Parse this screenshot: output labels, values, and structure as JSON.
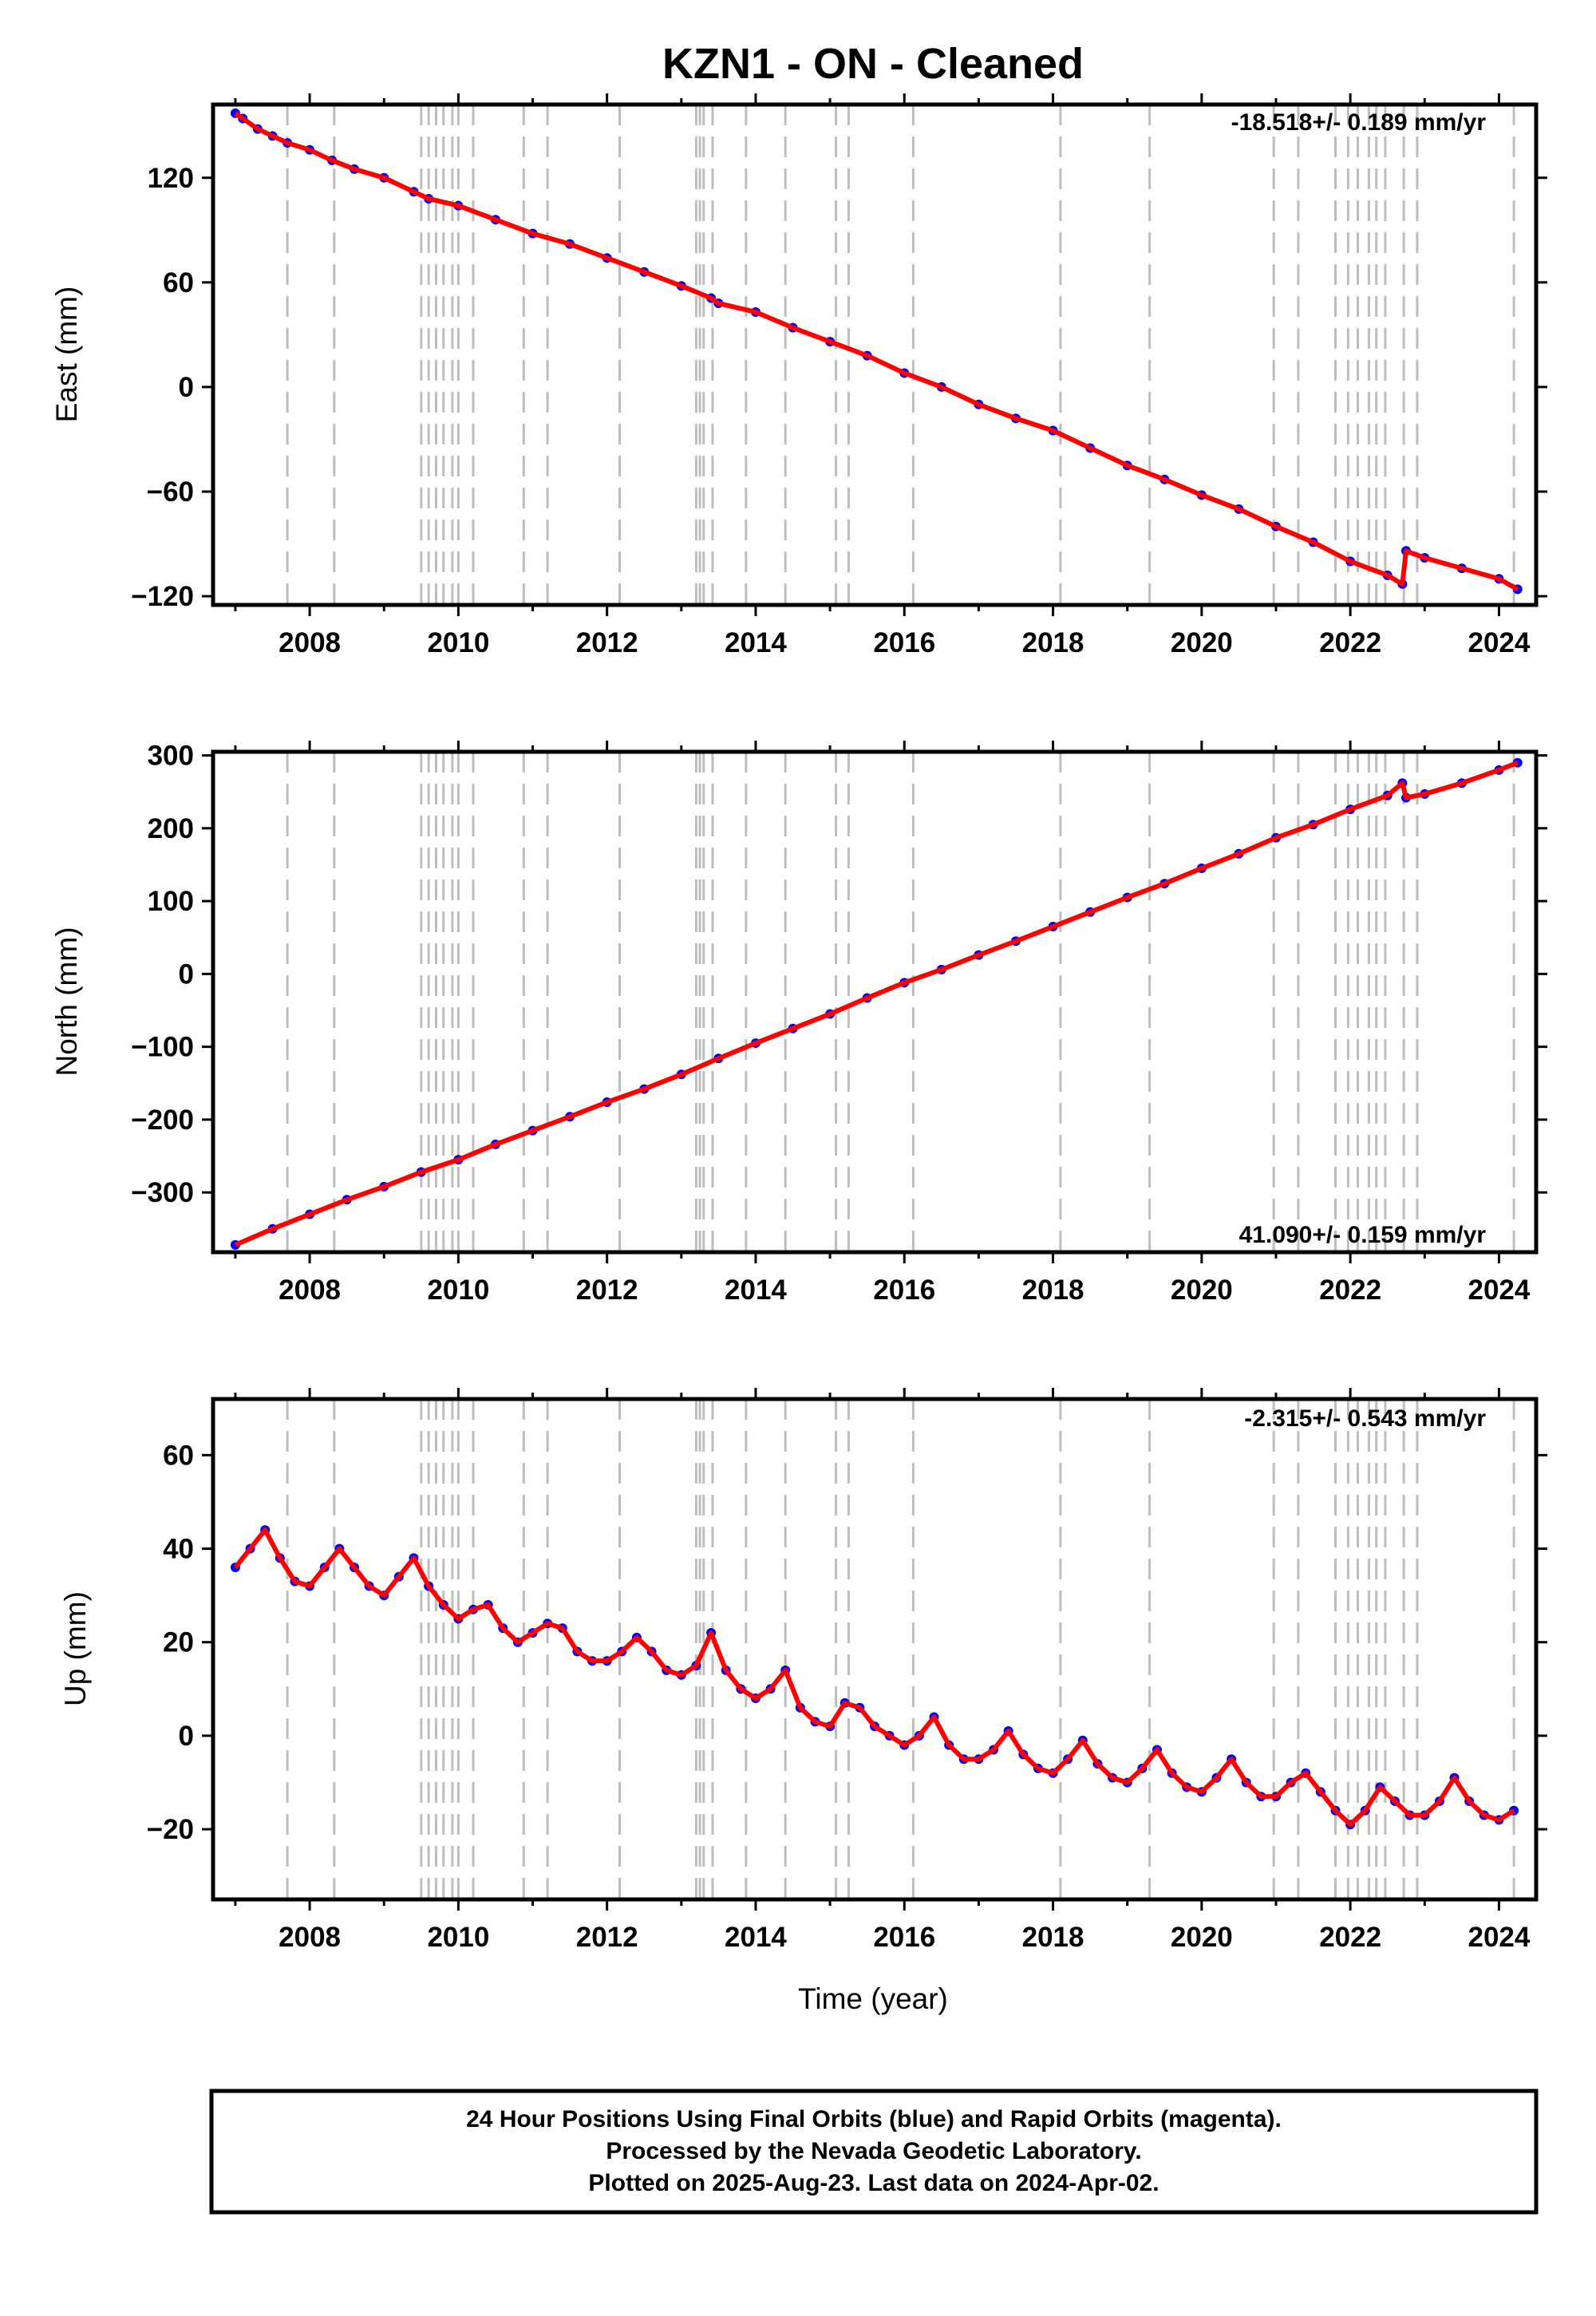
{
  "figure": {
    "title": "KZN1  - ON - Cleaned",
    "x_axis_label": "Time (year)",
    "footer": [
      "24 Hour Positions Using Final Orbits (blue) and Rapid Orbits (magenta).",
      "Processed by the Nevada Geodetic Laboratory.",
      "Plotted on 2025-Aug-23. Last data on 2024-Apr-02."
    ],
    "colors": {
      "observations": "#0000ff",
      "model": "#ff0000",
      "event_lines": "#bdbdbd",
      "frame": "#000000"
    }
  },
  "chart_data": [
    {
      "type": "scatter",
      "panel": "east",
      "ylabel": "East (mm)",
      "rate_text": "-18.518+/- 0.189 mm/yr",
      "rate_position": "top-right",
      "xlim": [
        2006.7,
        2024.5
      ],
      "ylim": [
        -125,
        162
      ],
      "x_ticks": [
        2008,
        2010,
        2012,
        2014,
        2016,
        2018,
        2020,
        2022,
        2024
      ],
      "y_ticks": [
        -120,
        -60,
        0,
        60,
        120
      ],
      "grid": false,
      "event_lines": [
        2007.7,
        2008.33,
        2009.5,
        2009.6,
        2009.7,
        2009.8,
        2009.92,
        2010.0,
        2010.2,
        2010.88,
        2011.2,
        2012.17,
        2013.2,
        2013.25,
        2013.3,
        2013.42,
        2013.87,
        2014.4,
        2015.08,
        2015.25,
        2016.12,
        2018.1,
        2019.3,
        2020.97,
        2021.3,
        2021.8,
        2021.97,
        2022.1,
        2022.25,
        2022.35,
        2022.47,
        2022.72,
        2022.9,
        2024.2
      ],
      "series": [
        {
          "name": "24 Hour Positions (Final Orbits)",
          "style": "points",
          "x": [
            2007.0,
            2007.1,
            2007.3,
            2007.5,
            2007.7,
            2008.0,
            2008.3,
            2008.6,
            2009.0,
            2009.4,
            2009.6,
            2010.0,
            2010.5,
            2011.0,
            2011.5,
            2012.0,
            2012.5,
            2013.0,
            2013.4,
            2013.5,
            2014.0,
            2014.5,
            2015.0,
            2015.5,
            2016.0,
            2016.5,
            2017.0,
            2017.5,
            2018.0,
            2018.5,
            2019.0,
            2019.5,
            2020.0,
            2020.5,
            2021.0,
            2021.5,
            2022.0,
            2022.5,
            2022.7,
            2022.75,
            2023.0,
            2023.5,
            2024.0,
            2024.25
          ],
          "y": [
            157,
            154,
            148,
            144,
            140,
            136,
            130,
            125,
            120,
            112,
            108,
            104,
            96,
            88,
            82,
            74,
            66,
            58,
            51,
            48,
            43,
            34,
            26,
            18,
            8,
            0,
            -10,
            -18,
            -25,
            -35,
            -45,
            -53,
            -62,
            -70,
            -80,
            -89,
            -100,
            -108,
            -113,
            -94,
            -98,
            -104,
            -110,
            -116
          ]
        },
        {
          "name": "Model",
          "style": "line",
          "x": [
            2007.0,
            2007.1,
            2007.3,
            2007.5,
            2007.7,
            2008.0,
            2008.3,
            2008.6,
            2009.0,
            2009.4,
            2009.6,
            2010.0,
            2010.5,
            2011.0,
            2011.5,
            2012.0,
            2012.5,
            2013.0,
            2013.4,
            2013.5,
            2014.0,
            2014.5,
            2015.0,
            2015.5,
            2016.0,
            2016.5,
            2017.0,
            2017.5,
            2018.0,
            2018.5,
            2019.0,
            2019.5,
            2020.0,
            2020.5,
            2021.0,
            2021.5,
            2022.0,
            2022.5,
            2022.7,
            2022.75,
            2023.0,
            2023.5,
            2024.0,
            2024.25
          ],
          "y": [
            157,
            154,
            148,
            144,
            140,
            136,
            130,
            125,
            120,
            112,
            108,
            104,
            96,
            88,
            82,
            74,
            66,
            58,
            51,
            48,
            43,
            34,
            26,
            18,
            8,
            0,
            -10,
            -18,
            -25,
            -35,
            -45,
            -53,
            -62,
            -70,
            -80,
            -89,
            -100,
            -108,
            -113,
            -94,
            -98,
            -104,
            -110,
            -116
          ]
        }
      ]
    },
    {
      "type": "scatter",
      "panel": "north",
      "ylabel": "North (mm)",
      "rate_text": "41.090+/- 0.159 mm/yr",
      "rate_position": "bottom-right",
      "xlim": [
        2006.7,
        2024.5
      ],
      "ylim": [
        -382,
        305
      ],
      "x_ticks": [
        2008,
        2010,
        2012,
        2014,
        2016,
        2018,
        2020,
        2022,
        2024
      ],
      "y_ticks": [
        -300,
        -200,
        -100,
        0,
        100,
        200,
        300
      ],
      "grid": false,
      "event_lines": [
        2007.7,
        2008.33,
        2009.5,
        2009.6,
        2009.7,
        2009.8,
        2009.92,
        2010.0,
        2010.2,
        2010.88,
        2011.2,
        2012.17,
        2013.2,
        2013.25,
        2013.3,
        2013.42,
        2013.87,
        2014.4,
        2015.08,
        2015.25,
        2016.12,
        2018.1,
        2019.3,
        2020.97,
        2021.3,
        2021.8,
        2021.97,
        2022.1,
        2022.25,
        2022.35,
        2022.47,
        2022.72,
        2022.9,
        2024.2
      ],
      "series": [
        {
          "name": "24 Hour Positions (Final Orbits)",
          "style": "points",
          "x": [
            2007.0,
            2007.5,
            2008.0,
            2008.5,
            2009.0,
            2009.5,
            2010.0,
            2010.5,
            2011.0,
            2011.5,
            2012.0,
            2012.5,
            2013.0,
            2013.5,
            2014.0,
            2014.5,
            2015.0,
            2015.5,
            2016.0,
            2016.5,
            2017.0,
            2017.5,
            2018.0,
            2018.5,
            2019.0,
            2019.5,
            2020.0,
            2020.5,
            2021.0,
            2021.5,
            2022.0,
            2022.5,
            2022.7,
            2022.75,
            2023.0,
            2023.5,
            2024.0,
            2024.25
          ],
          "y": [
            -372,
            -350,
            -330,
            -310,
            -292,
            -272,
            -255,
            -234,
            -215,
            -196,
            -176,
            -158,
            -138,
            -116,
            -95,
            -75,
            -55,
            -33,
            -12,
            6,
            26,
            45,
            65,
            85,
            105,
            124,
            145,
            165,
            187,
            205,
            226,
            245,
            262,
            242,
            247,
            262,
            280,
            290
          ]
        },
        {
          "name": "Model",
          "style": "line",
          "x": [
            2007.0,
            2007.5,
            2008.0,
            2008.5,
            2009.0,
            2009.5,
            2010.0,
            2010.5,
            2011.0,
            2011.5,
            2012.0,
            2012.5,
            2013.0,
            2013.5,
            2014.0,
            2014.5,
            2015.0,
            2015.5,
            2016.0,
            2016.5,
            2017.0,
            2017.5,
            2018.0,
            2018.5,
            2019.0,
            2019.5,
            2020.0,
            2020.5,
            2021.0,
            2021.5,
            2022.0,
            2022.5,
            2022.7,
            2022.75,
            2023.0,
            2023.5,
            2024.0,
            2024.25
          ],
          "y": [
            -372,
            -350,
            -330,
            -310,
            -292,
            -272,
            -255,
            -234,
            -215,
            -196,
            -176,
            -158,
            -138,
            -116,
            -95,
            -75,
            -55,
            -33,
            -12,
            6,
            26,
            45,
            65,
            85,
            105,
            124,
            145,
            165,
            187,
            205,
            226,
            245,
            262,
            242,
            247,
            262,
            280,
            290
          ]
        }
      ]
    },
    {
      "type": "scatter",
      "panel": "up",
      "ylabel": "Up (mm)",
      "rate_text": "-2.315+/- 0.543 mm/yr",
      "rate_position": "top-right",
      "xlim": [
        2006.7,
        2024.5
      ],
      "ylim": [
        -35,
        72
      ],
      "x_ticks": [
        2008,
        2010,
        2012,
        2014,
        2016,
        2018,
        2020,
        2022,
        2024
      ],
      "y_ticks": [
        -20,
        0,
        20,
        40,
        60
      ],
      "grid": false,
      "event_lines": [
        2007.7,
        2008.33,
        2009.5,
        2009.6,
        2009.7,
        2009.8,
        2009.92,
        2010.0,
        2010.2,
        2010.88,
        2011.2,
        2012.17,
        2013.2,
        2013.25,
        2013.3,
        2013.42,
        2013.87,
        2014.4,
        2015.08,
        2015.25,
        2016.12,
        2018.1,
        2019.3,
        2020.97,
        2021.3,
        2021.8,
        2021.97,
        2022.1,
        2022.25,
        2022.35,
        2022.47,
        2022.72,
        2022.9,
        2024.2
      ],
      "series": [
        {
          "name": "24 Hour Positions (Final Orbits)",
          "style": "points",
          "x": [
            2007.0,
            2007.2,
            2007.4,
            2007.6,
            2007.8,
            2008.0,
            2008.2,
            2008.4,
            2008.6,
            2008.8,
            2009.0,
            2009.2,
            2009.4,
            2009.6,
            2009.8,
            2010.0,
            2010.2,
            2010.4,
            2010.6,
            2010.8,
            2011.0,
            2011.2,
            2011.4,
            2011.6,
            2011.8,
            2012.0,
            2012.2,
            2012.4,
            2012.6,
            2012.8,
            2013.0,
            2013.2,
            2013.4,
            2013.6,
            2013.8,
            2014.0,
            2014.2,
            2014.4,
            2014.6,
            2014.8,
            2015.0,
            2015.2,
            2015.4,
            2015.6,
            2015.8,
            2016.0,
            2016.2,
            2016.4,
            2016.6,
            2016.8,
            2017.0,
            2017.2,
            2017.4,
            2017.6,
            2017.8,
            2018.0,
            2018.2,
            2018.4,
            2018.6,
            2018.8,
            2019.0,
            2019.2,
            2019.4,
            2019.6,
            2019.8,
            2020.0,
            2020.2,
            2020.4,
            2020.6,
            2020.8,
            2021.0,
            2021.2,
            2021.4,
            2021.6,
            2021.8,
            2022.0,
            2022.2,
            2022.4,
            2022.6,
            2022.8,
            2023.0,
            2023.2,
            2023.4,
            2023.6,
            2023.8,
            2024.0,
            2024.2
          ],
          "y": [
            36,
            40,
            44,
            38,
            33,
            32,
            36,
            40,
            36,
            32,
            30,
            34,
            38,
            32,
            28,
            25,
            27,
            28,
            23,
            20,
            22,
            24,
            23,
            18,
            16,
            16,
            18,
            21,
            18,
            14,
            13,
            15,
            22,
            14,
            10,
            8,
            10,
            14,
            6,
            3,
            2,
            7,
            6,
            2,
            0,
            -2,
            0,
            4,
            -2,
            -5,
            -5,
            -3,
            1,
            -4,
            -7,
            -8,
            -5,
            -1,
            -6,
            -9,
            -10,
            -7,
            -3,
            -8,
            -11,
            -12,
            -9,
            -5,
            -10,
            -13,
            -13,
            -10,
            -8,
            -12,
            -16,
            -19,
            -16,
            -11,
            -14,
            -17,
            -17,
            -14,
            -9,
            -14,
            -17,
            -18,
            -16
          ]
        },
        {
          "name": "Model",
          "style": "line",
          "x": [
            2007.0,
            2007.2,
            2007.4,
            2007.6,
            2007.8,
            2008.0,
            2008.2,
            2008.4,
            2008.6,
            2008.8,
            2009.0,
            2009.2,
            2009.4,
            2009.6,
            2009.8,
            2010.0,
            2010.2,
            2010.4,
            2010.6,
            2010.8,
            2011.0,
            2011.2,
            2011.4,
            2011.6,
            2011.8,
            2012.0,
            2012.2,
            2012.4,
            2012.6,
            2012.8,
            2013.0,
            2013.2,
            2013.4,
            2013.6,
            2013.8,
            2014.0,
            2014.2,
            2014.4,
            2014.6,
            2014.8,
            2015.0,
            2015.2,
            2015.4,
            2015.6,
            2015.8,
            2016.0,
            2016.2,
            2016.4,
            2016.6,
            2016.8,
            2017.0,
            2017.2,
            2017.4,
            2017.6,
            2017.8,
            2018.0,
            2018.2,
            2018.4,
            2018.6,
            2018.8,
            2019.0,
            2019.2,
            2019.4,
            2019.6,
            2019.8,
            2020.0,
            2020.2,
            2020.4,
            2020.6,
            2020.8,
            2021.0,
            2021.2,
            2021.4,
            2021.6,
            2021.8,
            2022.0,
            2022.2,
            2022.4,
            2022.6,
            2022.8,
            2023.0,
            2023.2,
            2023.4,
            2023.6,
            2023.8,
            2024.0,
            2024.2
          ],
          "y": [
            36,
            40,
            44,
            38,
            33,
            32,
            36,
            40,
            36,
            32,
            30,
            34,
            38,
            32,
            28,
            25,
            27,
            28,
            23,
            20,
            22,
            24,
            23,
            18,
            16,
            16,
            18,
            21,
            18,
            14,
            13,
            15,
            22,
            14,
            10,
            8,
            10,
            14,
            6,
            3,
            2,
            7,
            6,
            2,
            0,
            -2,
            0,
            4,
            -2,
            -5,
            -5,
            -3,
            1,
            -4,
            -7,
            -8,
            -5,
            -1,
            -6,
            -9,
            -10,
            -7,
            -3,
            -8,
            -11,
            -12,
            -9,
            -5,
            -10,
            -13,
            -13,
            -10,
            -8,
            -12,
            -16,
            -19,
            -16,
            -11,
            -14,
            -17,
            -17,
            -14,
            -9,
            -14,
            -17,
            -18,
            -16
          ]
        }
      ]
    }
  ]
}
